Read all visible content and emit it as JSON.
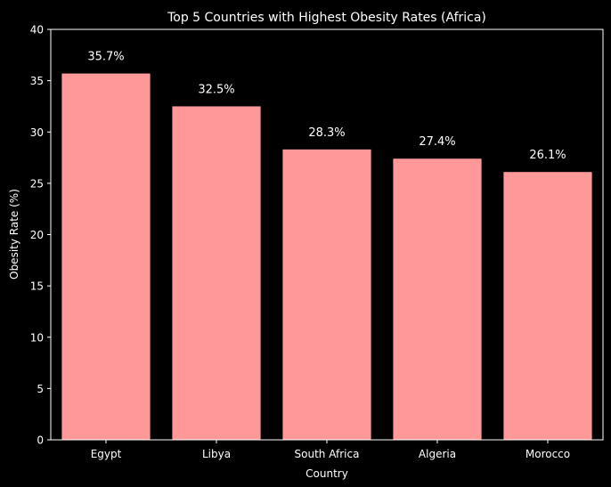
{
  "chart_data": {
    "type": "bar",
    "title": "Top 5 Countries with Highest Obesity Rates (Africa)",
    "xlabel": "Country",
    "ylabel": "Obesity Rate (%)",
    "categories": [
      "Egypt",
      "Libya",
      "South Africa",
      "Algeria",
      "Morocco"
    ],
    "values": [
      35.7,
      32.5,
      28.3,
      27.4,
      26.1
    ],
    "value_labels": [
      "35.7%",
      "32.5%",
      "28.3%",
      "27.4%",
      "26.1%"
    ],
    "ylim": [
      0,
      40
    ],
    "yticks": [
      0,
      5,
      10,
      15,
      20,
      25,
      30,
      35,
      40
    ],
    "grid": false,
    "legend": "none",
    "colors": {
      "bar": "#ff9999",
      "background": "#000000",
      "text": "#ffffff",
      "axis": "#ffffff"
    }
  }
}
